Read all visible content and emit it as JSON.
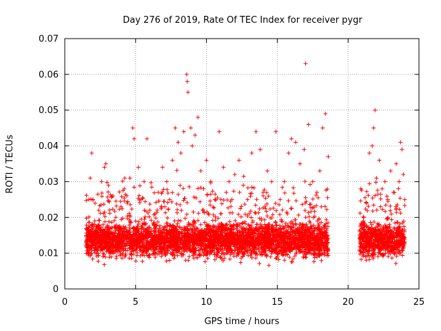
{
  "chart_data": {
    "type": "scatter",
    "title": "Day 276 of 2019, Rate Of TEC Index for receiver pygr",
    "xlabel": "GPS time / hours",
    "ylabel": "ROTI / TECUs",
    "xlim": [
      0,
      25
    ],
    "ylim": [
      0,
      0.07
    ],
    "x_ticks": [
      "0",
      "5",
      "10",
      "15",
      "20",
      "25"
    ],
    "y_ticks": [
      "0",
      "0.01",
      "0.02",
      "0.03",
      "0.04",
      "0.05",
      "0.06",
      "0.07"
    ],
    "grid": true,
    "marker": "+",
    "marker_color": "#ff0000",
    "data_segments": [
      {
        "x_start": 1.5,
        "x_end": 18.6
      },
      {
        "x_start": 20.8,
        "x_end": 24.0
      }
    ],
    "series": [
      {
        "x": [
          1.5,
          1.7,
          1.8,
          1.9,
          2.0,
          2.2,
          2.4,
          2.6,
          2.8,
          2.9,
          3.0,
          3.2,
          3.4,
          3.6,
          3.8,
          4.0,
          4.2,
          4.4,
          4.6,
          4.8,
          4.9,
          5.0,
          5.2,
          5.4,
          5.6,
          5.8,
          6.0,
          6.3,
          6.6,
          6.9,
          7.2,
          7.4,
          7.6,
          7.8,
          8.0,
          8.2,
          8.4,
          8.6,
          8.65,
          8.7,
          8.9,
          9.0,
          9.2,
          9.4,
          9.6,
          9.8,
          10.0,
          10.3,
          10.6,
          10.9,
          11.2,
          11.4,
          11.6,
          11.8,
          12.0,
          12.3,
          12.6,
          12.9,
          13.2,
          13.5,
          13.8,
          14.0,
          14.3,
          14.6,
          14.9,
          15.2,
          15.5,
          15.8,
          16.0,
          16.3,
          16.6,
          16.9,
          17.0,
          17.2,
          17.5,
          17.8,
          18.0,
          18.2,
          18.4,
          18.6
        ],
        "y": [
          0.012,
          0.025,
          0.031,
          0.038,
          0.018,
          0.015,
          0.022,
          0.03,
          0.034,
          0.035,
          0.017,
          0.014,
          0.026,
          0.02,
          0.016,
          0.013,
          0.028,
          0.024,
          0.031,
          0.045,
          0.042,
          0.019,
          0.034,
          0.025,
          0.03,
          0.042,
          0.022,
          0.018,
          0.027,
          0.034,
          0.03,
          0.025,
          0.036,
          0.045,
          0.041,
          0.038,
          0.044,
          0.06,
          0.058,
          0.055,
          0.045,
          0.04,
          0.043,
          0.048,
          0.033,
          0.028,
          0.036,
          0.03,
          0.025,
          0.044,
          0.034,
          0.027,
          0.03,
          0.025,
          0.032,
          0.036,
          0.029,
          0.025,
          0.038,
          0.044,
          0.039,
          0.027,
          0.033,
          0.03,
          0.044,
          0.025,
          0.03,
          0.038,
          0.042,
          0.041,
          0.035,
          0.039,
          0.063,
          0.046,
          0.03,
          0.027,
          0.033,
          0.045,
          0.049,
          0.037
        ]
      },
      {
        "x": [
          20.9,
          21.1,
          21.3,
          21.5,
          21.7,
          21.8,
          21.9,
          22.0,
          22.2,
          22.4,
          22.6,
          22.8,
          23.0,
          23.2,
          23.4,
          23.6,
          23.7,
          23.8,
          23.9,
          24.0
        ],
        "y": [
          0.028,
          0.02,
          0.024,
          0.038,
          0.04,
          0.045,
          0.05,
          0.031,
          0.036,
          0.028,
          0.03,
          0.025,
          0.033,
          0.027,
          0.035,
          0.03,
          0.041,
          0.039,
          0.032,
          0.025
        ]
      }
    ]
  }
}
